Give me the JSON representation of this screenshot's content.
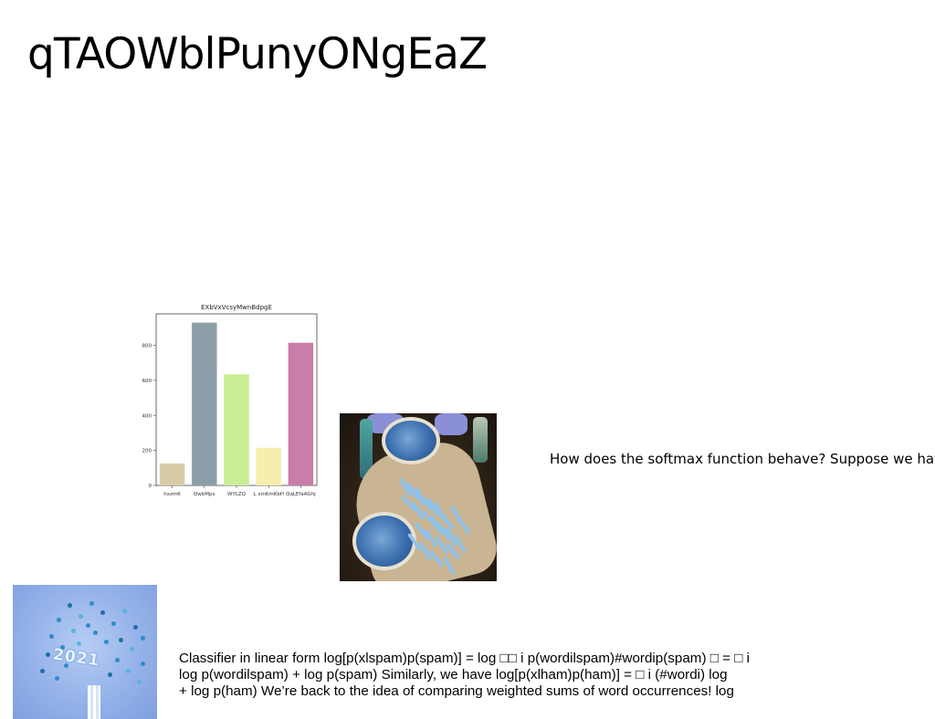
{
  "slide": {
    "title": "qTAOWblPunyONgEaZ",
    "question_text": "How does the softmax function behave? Suppose we have",
    "classifier_text": "Classifier in linear form log[p(xlspam)p(spam)] = log □□ i p(wordilspam)#wordip(spam) □ = □ i\nlog p(wordilspam) + log p(spam) Similarly, we have log[p(xlham)p(ham)] = □ i (#wordi) log\n+ log p(ham) We’re back to the idea of comparing weighted sums of word occurrences! log"
  },
  "images": {
    "pills_photo_label": "blue pills photo",
    "new_year_photo_label": "2021 confetti photo",
    "new_year_photo_text": "2021"
  },
  "chart_data": {
    "type": "bar",
    "title": "EXbVxVcsyMwnBdpgE",
    "categories": [
      "hxzmK",
      "QwbMpx",
      "WYLZQ",
      "L xmKmKbH",
      "QqLEfaAGhJ"
    ],
    "values": [
      125,
      930,
      635,
      215,
      815
    ],
    "colors": [
      "#d8cca8",
      "#8c9ea8",
      "#c9ee96",
      "#f6eeae",
      "#c97da8"
    ],
    "ylim": [
      0,
      980
    ],
    "yticks": [
      0,
      200,
      400,
      600,
      800
    ],
    "xlabel": "",
    "ylabel": "",
    "grid": false
  }
}
